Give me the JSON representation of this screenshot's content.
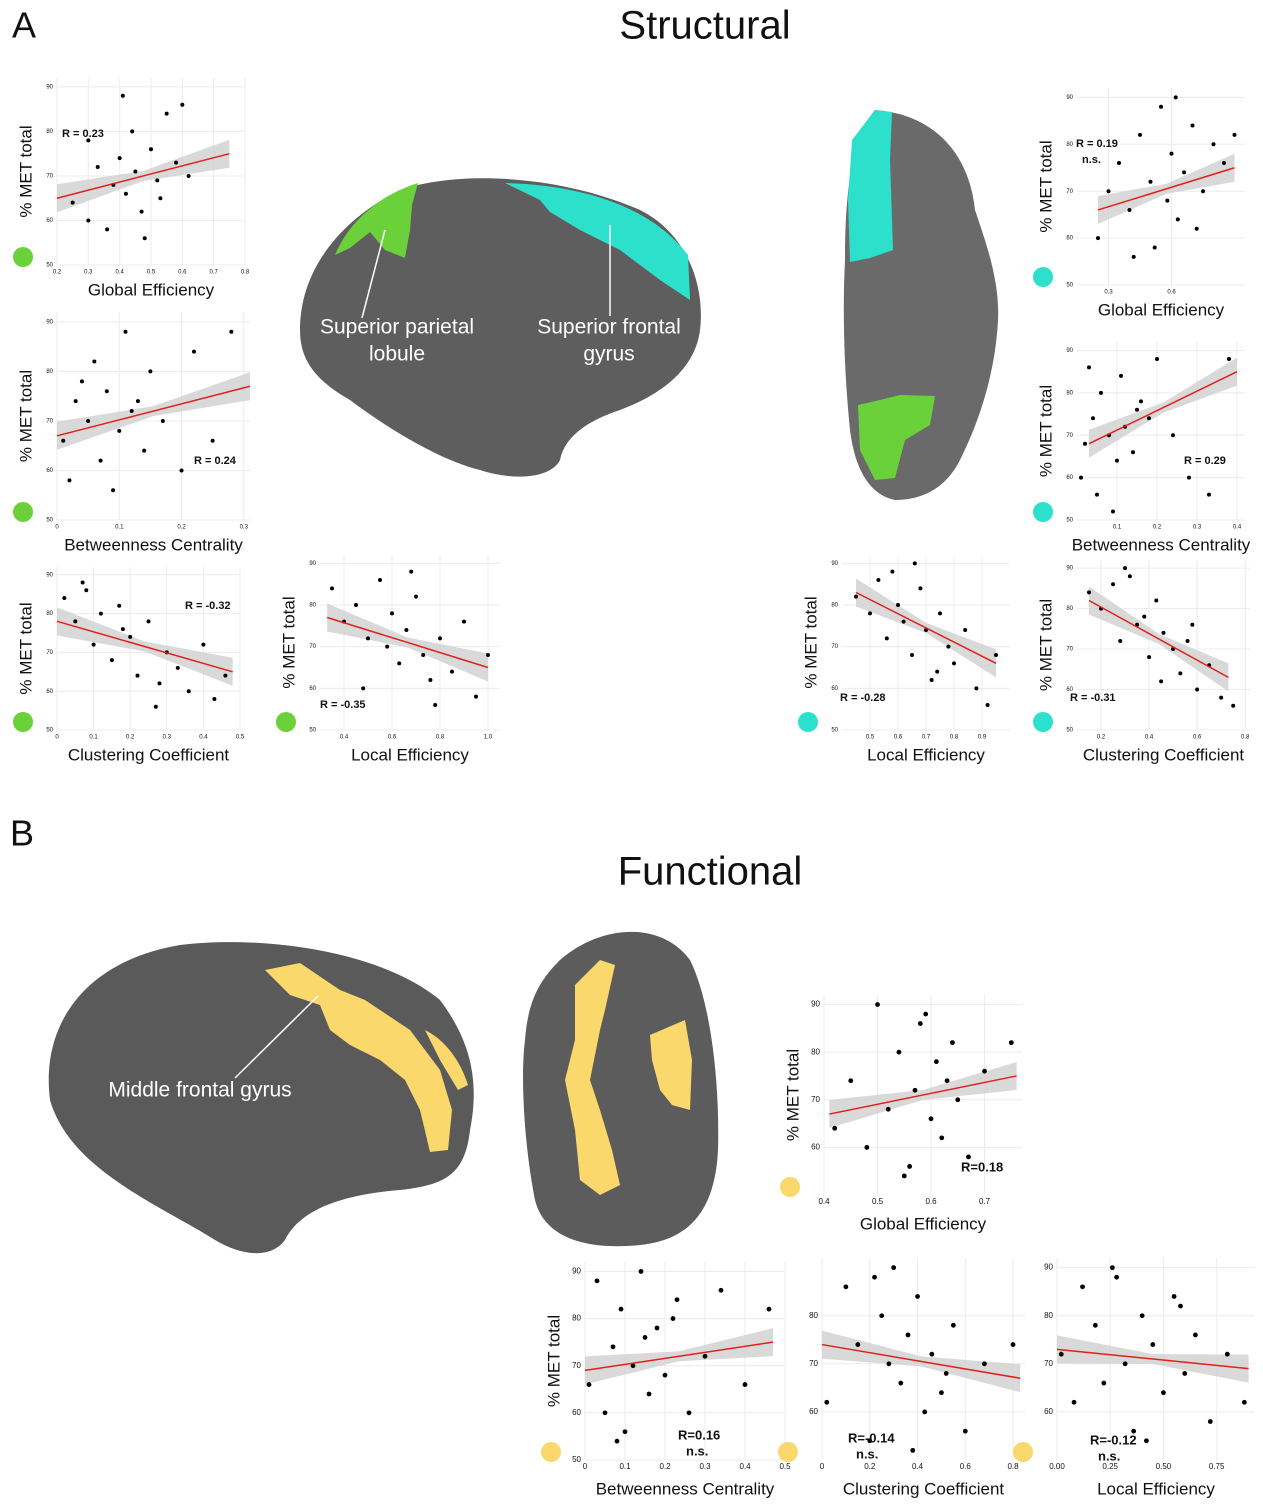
{
  "figure": {
    "panel_a": {
      "label": "A",
      "title": "Structural",
      "regions": [
        {
          "lines": [
            "Superior parietal",
            "lobule"
          ]
        },
        {
          "lines": [
            "Superior frontal",
            "gyrus"
          ]
        }
      ]
    },
    "panel_b": {
      "label": "B",
      "title": "Functional",
      "regions": [
        {
          "lines": [
            "Middle frontal gyrus"
          ]
        }
      ]
    }
  },
  "chart_data": [
    {
      "type": "scatter",
      "x_label": "Global Efficiency",
      "y_label": "% MET total",
      "annotation": "R = 0.23",
      "color": "#6ad13a",
      "xlim": [
        0.2,
        0.8
      ],
      "ylim": [
        50,
        92
      ],
      "xticks": [
        0.2,
        0.3,
        0.4,
        0.5,
        0.6,
        0.7,
        0.8
      ],
      "yticks": [
        50,
        60,
        70,
        80,
        90
      ],
      "x": [
        0.25,
        0.3,
        0.33,
        0.36,
        0.38,
        0.4,
        0.42,
        0.44,
        0.45,
        0.47,
        0.5,
        0.52,
        0.55,
        0.58,
        0.6,
        0.62,
        0.3,
        0.48,
        0.41,
        0.53
      ],
      "y": [
        64,
        60,
        72,
        58,
        68,
        74,
        66,
        80,
        71,
        62,
        76,
        69,
        84,
        73,
        86,
        70,
        78,
        56,
        88,
        65
      ],
      "trend": {
        "x": [
          0.2,
          0.75
        ],
        "y": [
          65,
          75
        ]
      }
    },
    {
      "type": "scatter",
      "x_label": "Betweenness Centrality",
      "y_label": "% MET total",
      "annotation": "R = 0.24",
      "color": "#6ad13a",
      "xlim": [
        0,
        0.31
      ],
      "ylim": [
        50,
        92
      ],
      "xticks": [
        0,
        0.1,
        0.2,
        0.3
      ],
      "yticks": [
        50,
        60,
        70,
        80,
        90
      ],
      "x": [
        0.01,
        0.02,
        0.03,
        0.05,
        0.06,
        0.07,
        0.08,
        0.1,
        0.11,
        0.12,
        0.14,
        0.15,
        0.17,
        0.2,
        0.22,
        0.25,
        0.04,
        0.09,
        0.13,
        0.28
      ],
      "y": [
        66,
        58,
        74,
        70,
        82,
        62,
        76,
        68,
        88,
        72,
        64,
        80,
        70,
        60,
        84,
        66,
        78,
        56,
        74,
        88
      ],
      "trend": {
        "x": [
          0,
          0.31
        ],
        "y": [
          67,
          77
        ]
      }
    },
    {
      "type": "scatter",
      "x_label": "Clustering Coefficient",
      "y_label": "% MET total",
      "annotation": "R = -0.32",
      "color": "#6ad13a",
      "xlim": [
        0,
        0.5
      ],
      "ylim": [
        50,
        92
      ],
      "xticks": [
        0,
        0.1,
        0.2,
        0.3,
        0.4,
        0.5
      ],
      "yticks": [
        50,
        60,
        70,
        80,
        90
      ],
      "x": [
        0.02,
        0.05,
        0.08,
        0.1,
        0.12,
        0.15,
        0.18,
        0.2,
        0.22,
        0.25,
        0.28,
        0.3,
        0.33,
        0.36,
        0.4,
        0.43,
        0.07,
        0.17,
        0.27,
        0.46
      ],
      "y": [
        84,
        78,
        86,
        72,
        80,
        68,
        76,
        74,
        64,
        78,
        62,
        70,
        66,
        60,
        72,
        58,
        88,
        82,
        56,
        64
      ],
      "trend": {
        "x": [
          0,
          0.48
        ],
        "y": [
          78,
          65
        ]
      }
    },
    {
      "type": "scatter",
      "x_label": "Local Efficiency",
      "y_label": "% MET total",
      "annotation": "R = -0.35",
      "color": "#6ad13a",
      "xlim": [
        0.3,
        1.05
      ],
      "ylim": [
        50,
        92
      ],
      "xticks": [
        0.4,
        0.6,
        0.8,
        {
          "value": 1,
          "label": "1.0"
        }
      ],
      "yticks": [
        50,
        60,
        70,
        80,
        90
      ],
      "x": [
        0.35,
        0.4,
        0.45,
        0.5,
        0.55,
        0.58,
        0.6,
        0.63,
        0.66,
        0.7,
        0.73,
        0.76,
        0.8,
        0.85,
        0.9,
        0.95,
        0.48,
        0.68,
        0.78,
        1.0
      ],
      "y": [
        84,
        76,
        80,
        72,
        86,
        70,
        78,
        66,
        74,
        82,
        68,
        62,
        72,
        64,
        76,
        58,
        60,
        88,
        56,
        68
      ],
      "trend": {
        "x": [
          0.33,
          1.0
        ],
        "y": [
          77,
          65
        ]
      }
    },
    {
      "type": "scatter",
      "x_label": "Global Efficiency",
      "y_label": "% MET total",
      "annotation": "R = 0.19",
      "note": "n.s.",
      "color": "#2de0cc",
      "xlim": [
        0.15,
        0.95
      ],
      "ylim": [
        50,
        92
      ],
      "xticks": [
        0.3,
        0.6
      ],
      "yticks": [
        50,
        60,
        70,
        80,
        90
      ],
      "x": [
        0.25,
        0.3,
        0.35,
        0.4,
        0.45,
        0.5,
        0.52,
        0.55,
        0.58,
        0.6,
        0.63,
        0.66,
        0.7,
        0.75,
        0.8,
        0.85,
        0.42,
        0.62,
        0.72,
        0.9
      ],
      "y": [
        60,
        70,
        76,
        66,
        82,
        72,
        58,
        88,
        68,
        78,
        64,
        74,
        84,
        70,
        80,
        76,
        56,
        90,
        62,
        82
      ],
      "trend": {
        "x": [
          0.25,
          0.9
        ],
        "y": [
          66,
          75
        ]
      }
    },
    {
      "type": "scatter",
      "x_label": "Betweenness Centrality",
      "y_label": "% MET total",
      "annotation": "R = 0.29",
      "color": "#2de0cc",
      "xlim": [
        0,
        0.42
      ],
      "ylim": [
        50,
        92
      ],
      "xticks": [
        0.1,
        0.2,
        0.3,
        0.4
      ],
      "yticks": [
        50,
        60,
        70,
        80,
        90
      ],
      "x": [
        0.01,
        0.02,
        0.04,
        0.05,
        0.06,
        0.08,
        0.1,
        0.11,
        0.12,
        0.14,
        0.16,
        0.18,
        0.2,
        0.24,
        0.28,
        0.33,
        0.03,
        0.09,
        0.15,
        0.38
      ],
      "y": [
        60,
        68,
        74,
        56,
        80,
        70,
        64,
        84,
        72,
        66,
        78,
        74,
        88,
        70,
        60,
        56,
        86,
        52,
        76,
        88
      ],
      "trend": {
        "x": [
          0.03,
          0.4
        ],
        "y": [
          68,
          85
        ]
      }
    },
    {
      "type": "scatter",
      "x_label": "Local Efficiency",
      "y_label": "% MET total",
      "annotation": "R = -0.28",
      "color": "#2de0cc",
      "xlim": [
        0.4,
        1
      ],
      "ylim": [
        50,
        92
      ],
      "xticks": [
        0.5,
        0.6,
        0.7,
        0.8,
        0.9
      ],
      "yticks": [
        50,
        60,
        70,
        80,
        90
      ],
      "x": [
        0.45,
        0.5,
        0.53,
        0.56,
        0.6,
        0.62,
        0.65,
        0.68,
        0.7,
        0.72,
        0.75,
        0.78,
        0.8,
        0.84,
        0.88,
        0.92,
        0.58,
        0.74,
        0.66,
        0.95
      ],
      "y": [
        82,
        78,
        86,
        72,
        80,
        76,
        68,
        84,
        74,
        62,
        78,
        70,
        66,
        74,
        60,
        56,
        88,
        64,
        90,
        68
      ],
      "trend": {
        "x": [
          0.45,
          0.95
        ],
        "y": [
          83,
          66
        ]
      }
    },
    {
      "type": "scatter",
      "x_label": "Clustering Coefficient",
      "y_label": "% MET total",
      "annotation": "R = -0.31",
      "color": "#2de0cc",
      "xlim": [
        0.1,
        0.82
      ],
      "ylim": [
        50,
        92
      ],
      "xticks": [
        0.2,
        0.4,
        0.6,
        0.8
      ],
      "yticks": [
        50,
        60,
        70,
        80,
        90
      ],
      "x": [
        0.15,
        0.2,
        0.25,
        0.28,
        0.32,
        0.35,
        0.38,
        0.4,
        0.43,
        0.46,
        0.5,
        0.53,
        0.56,
        0.6,
        0.65,
        0.7,
        0.3,
        0.45,
        0.58,
        0.75
      ],
      "y": [
        84,
        80,
        86,
        72,
        88,
        76,
        78,
        68,
        82,
        74,
        70,
        64,
        72,
        60,
        66,
        58,
        90,
        62,
        76,
        56
      ],
      "trend": {
        "x": [
          0.15,
          0.73
        ],
        "y": [
          82,
          63
        ]
      }
    },
    {
      "type": "scatter",
      "x_label": "Global Efficiency",
      "y_label": "% MET total",
      "annotation": "R=0.18",
      "color": "#fbd86b",
      "xlim": [
        0.4,
        0.77
      ],
      "ylim": [
        50,
        92
      ],
      "xticks": [
        0.4,
        0.5,
        0.6,
        0.7
      ],
      "yticks": [
        60,
        70,
        80,
        90
      ],
      "x": [
        0.42,
        0.45,
        0.48,
        0.5,
        0.52,
        0.54,
        0.56,
        0.57,
        0.58,
        0.6,
        0.61,
        0.62,
        0.64,
        0.65,
        0.67,
        0.7,
        0.55,
        0.59,
        0.63,
        0.75
      ],
      "y": [
        64,
        74,
        60,
        90,
        68,
        80,
        56,
        72,
        86,
        66,
        78,
        62,
        82,
        70,
        58,
        76,
        54,
        88,
        74,
        82
      ],
      "trend": {
        "x": [
          0.41,
          0.76
        ],
        "y": [
          67,
          75
        ]
      }
    },
    {
      "type": "scatter",
      "x_label": "Betweenness Centrality",
      "y_label": "% MET total",
      "annotation": "R=0.16",
      "note": "n.s.",
      "color": "#fbd86b",
      "xlim": [
        0,
        0.5
      ],
      "ylim": [
        50,
        92
      ],
      "xticks": [
        0,
        0.1,
        0.2,
        0.3,
        0.4,
        0.5
      ],
      "yticks": [
        50,
        60,
        70,
        80,
        90
      ],
      "x": [
        0.01,
        0.03,
        0.05,
        0.07,
        0.09,
        0.1,
        0.12,
        0.14,
        0.16,
        0.18,
        0.2,
        0.23,
        0.26,
        0.3,
        0.34,
        0.4,
        0.08,
        0.15,
        0.22,
        0.46
      ],
      "y": [
        66,
        88,
        60,
        74,
        82,
        56,
        70,
        90,
        64,
        78,
        68,
        84,
        60,
        72,
        86,
        66,
        54,
        76,
        80,
        82
      ],
      "trend": {
        "x": [
          0,
          0.47
        ],
        "y": [
          69,
          75
        ]
      }
    },
    {
      "type": "scatter",
      "x_label": "Clustering Coefficient",
      "annotation": "R=-0.14",
      "note": "n.s.",
      "color": "#fbd86b",
      "xlim": [
        0,
        0.85
      ],
      "ylim": [
        50,
        92
      ],
      "xticks": [
        0,
        0.2,
        0.4,
        0.6,
        0.8
      ],
      "yticks": [
        60,
        70,
        80
      ],
      "x": [
        0.02,
        0.1,
        0.15,
        0.2,
        0.25,
        0.28,
        0.3,
        0.33,
        0.36,
        0.4,
        0.43,
        0.46,
        0.5,
        0.55,
        0.6,
        0.68,
        0.22,
        0.38,
        0.52,
        0.8
      ],
      "y": [
        62,
        86,
        74,
        54,
        80,
        70,
        90,
        66,
        76,
        84,
        60,
        72,
        64,
        78,
        56,
        70,
        88,
        52,
        68,
        74
      ],
      "trend": {
        "x": [
          0,
          0.83
        ],
        "y": [
          74,
          67
        ]
      }
    },
    {
      "type": "scatter",
      "x_label": "Local Efficiency",
      "annotation": "R=-0.12",
      "note": "n.s.",
      "color": "#fbd86b",
      "xlim": [
        0,
        0.93
      ],
      "ylim": [
        50,
        92
      ],
      "xticks": [
        {
          "value": 0,
          "label": "0.00"
        },
        0.25,
        {
          "value": 0.5,
          "label": "0.50"
        },
        0.75
      ],
      "yticks": [
        60,
        70,
        80,
        90
      ],
      "x": [
        0.02,
        0.08,
        0.12,
        0.18,
        0.22,
        0.28,
        0.32,
        0.36,
        0.4,
        0.45,
        0.5,
        0.55,
        0.6,
        0.65,
        0.72,
        0.8,
        0.26,
        0.42,
        0.58,
        0.88
      ],
      "y": [
        72,
        62,
        86,
        78,
        66,
        88,
        70,
        56,
        80,
        74,
        64,
        84,
        68,
        76,
        58,
        72,
        90,
        54,
        82,
        62
      ],
      "trend": {
        "x": [
          0,
          0.9
        ],
        "y": [
          73,
          69
        ]
      }
    }
  ]
}
